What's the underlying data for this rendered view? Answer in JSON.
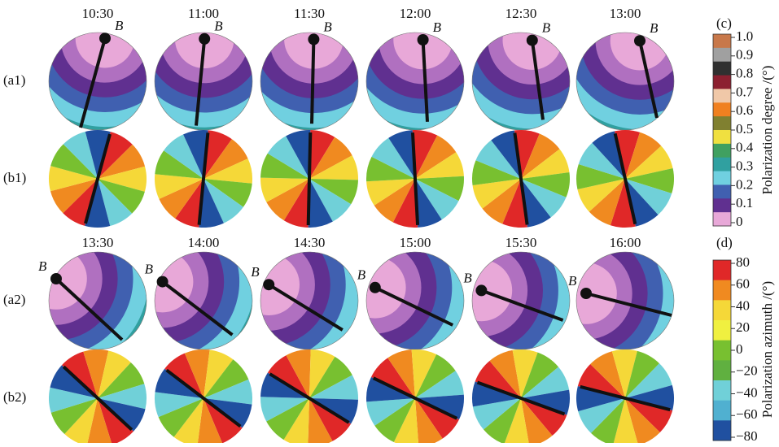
{
  "top": {
    "times": [
      "10:30",
      "11:00",
      "11:30",
      "12:00",
      "12:30",
      "13:00"
    ],
    "row_labels": [
      "(a1)",
      "(b1)"
    ]
  },
  "bottom": {
    "times": [
      "13:30",
      "14:00",
      "14:30",
      "15:00",
      "15:30",
      "16:00"
    ],
    "row_labels": [
      "(a2)",
      "(b2)"
    ]
  },
  "sun_label": "B",
  "colorbar_c": {
    "panel": "(c)",
    "label": "Polarization degree /(°)",
    "ticks": [
      "1.0",
      "0.9",
      "0.8",
      "0.7",
      "0.6",
      "0.5",
      "0.4",
      "0.3",
      "0.2",
      "0.1",
      "0"
    ],
    "colors": [
      "#c8784a",
      "#a0a0a0",
      "#303030",
      "#8c2030",
      "#f0c8a8",
      "#f08020",
      "#808030",
      "#f0e040",
      "#40a060",
      "#30a0a0",
      "#70d0e0",
      "#4060b0",
      "#603090",
      "#e8a8d8"
    ]
  },
  "colorbar_d": {
    "panel": "(d)",
    "label": "Polarization azimuth /(°)",
    "ticks": [
      "80",
      "60",
      "40",
      "20",
      "0",
      "−20",
      "−40",
      "−60",
      "−80"
    ],
    "colors": [
      "#e02828",
      "#f08a20",
      "#f5d838",
      "#f0f040",
      "#78c030",
      "#60b040",
      "#70d0d8",
      "#50b0d0",
      "#2050a0"
    ]
  }
}
